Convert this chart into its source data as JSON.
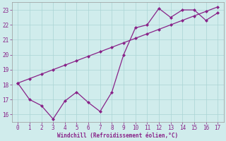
{
  "line1_x": [
    0,
    1,
    2,
    3,
    4,
    5,
    6,
    7,
    8,
    9,
    10,
    11,
    12,
    13,
    14,
    15,
    16,
    17
  ],
  "line1_y": [
    18.1,
    17.0,
    16.6,
    15.7,
    16.9,
    17.5,
    16.8,
    16.2,
    17.5,
    20.0,
    21.8,
    22.0,
    23.1,
    22.5,
    23.0,
    23.0,
    22.3,
    22.8
  ],
  "line2_x": [
    0,
    1,
    2,
    3,
    4,
    5,
    6,
    7,
    8,
    9,
    10,
    11,
    12,
    13,
    14,
    15,
    16,
    17
  ],
  "line2_y": [
    18.1,
    18.4,
    18.7,
    19.0,
    19.3,
    19.6,
    19.9,
    20.2,
    20.5,
    20.8,
    21.1,
    21.4,
    21.7,
    22.0,
    22.3,
    22.6,
    22.9,
    23.2
  ],
  "color": "#882288",
  "bg_color": "#d0ecec",
  "grid_color": "#aad4d4",
  "xlabel": "Windchill (Refroidissement éolien,°C)",
  "ylim": [
    15.5,
    23.5
  ],
  "xlim": [
    -0.5,
    17.5
  ],
  "yticks": [
    16,
    17,
    18,
    19,
    20,
    21,
    22,
    23
  ],
  "xticks": [
    0,
    1,
    2,
    3,
    4,
    5,
    6,
    7,
    8,
    9,
    10,
    11,
    12,
    13,
    14,
    15,
    16,
    17
  ],
  "tick_fontsize": 5.5,
  "xlabel_fontsize": 5.5
}
